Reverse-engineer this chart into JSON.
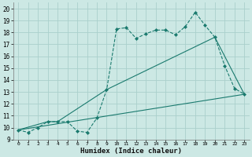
{
  "xlabel": "Humidex (Indice chaleur)",
  "bg_color": "#cce8e4",
  "line_color": "#1a7a6e",
  "grid_color": "#aad0cc",
  "xlim": [
    -0.5,
    23.5
  ],
  "ylim": [
    9,
    20.5
  ],
  "yticks": [
    9,
    10,
    11,
    12,
    13,
    14,
    15,
    16,
    17,
    18,
    19,
    20
  ],
  "xticks": [
    0,
    1,
    2,
    3,
    4,
    5,
    6,
    7,
    8,
    9,
    10,
    11,
    12,
    13,
    14,
    15,
    16,
    17,
    18,
    19,
    20,
    21,
    22,
    23
  ],
  "series": [
    {
      "x": [
        0,
        1,
        2,
        3,
        4,
        5,
        6,
        7,
        8,
        9,
        10,
        11,
        12,
        13,
        14,
        15,
        16,
        17,
        18,
        19,
        20,
        21,
        22,
        23
      ],
      "y": [
        9.8,
        9.6,
        10.0,
        10.5,
        10.5,
        10.5,
        9.7,
        9.6,
        10.8,
        13.2,
        18.3,
        18.4,
        17.5,
        17.9,
        18.2,
        18.2,
        17.8,
        18.5,
        19.7,
        18.6,
        17.6,
        15.2,
        13.3,
        12.8
      ],
      "marker": "D",
      "markersize": 2,
      "linestyle": "--"
    },
    {
      "x": [
        0,
        3,
        4,
        9,
        20,
        23
      ],
      "y": [
        9.8,
        10.5,
        10.5,
        13.2,
        17.6,
        12.8
      ],
      "marker": null,
      "markersize": 0,
      "linestyle": "-"
    },
    {
      "x": [
        0,
        23
      ],
      "y": [
        9.8,
        12.8
      ],
      "marker": null,
      "markersize": 0,
      "linestyle": "-"
    }
  ]
}
